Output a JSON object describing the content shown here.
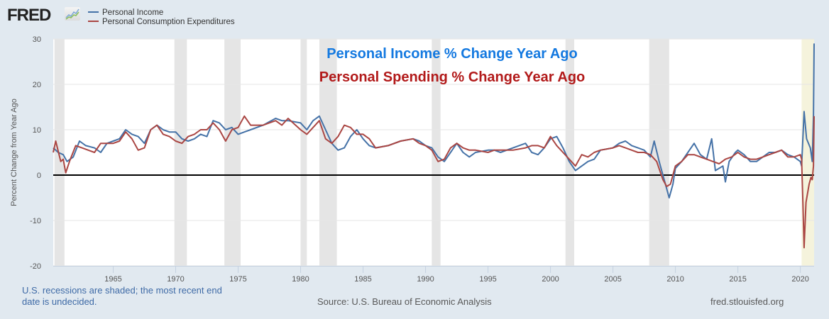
{
  "header": {
    "logo_text": "FRED",
    "logo_icon": "chart-line-icon"
  },
  "legend": [
    {
      "label": "Personal Income",
      "color": "#4572a7"
    },
    {
      "label": "Personal Consumption Expenditures",
      "color": "#aa4643"
    }
  ],
  "annotations": {
    "line1": "Personal Income % Change Year Ago",
    "line2": "Personal Spending % Change Year Ago",
    "line1_color": "#1479e0",
    "line2_color": "#b21a1a"
  },
  "footer": {
    "recession_note": "U.S. recessions are shaded; the most recent end date is undecided.",
    "source": "Source: U.S. Bureau of Economic Analysis",
    "site": "fred.stlouisfed.org"
  },
  "chart_data": {
    "type": "line",
    "title": "",
    "xlabel": "",
    "ylabel": "Percent Change from Year Ago",
    "xlim": [
      1960.2,
      2021.1
    ],
    "ylim": [
      -20,
      30
    ],
    "yticks": [
      -20,
      -10,
      0,
      10,
      20,
      30
    ],
    "xticks": [
      1965,
      1970,
      1975,
      1980,
      1985,
      1990,
      1995,
      2000,
      2005,
      2010,
      2015,
      2020
    ],
    "grid": true,
    "legend_position": "top-left",
    "recessions": [
      {
        "start": 1960.3,
        "end": 1961.1,
        "color": "#e5e5e5"
      },
      {
        "start": 1969.9,
        "end": 1970.9,
        "color": "#e5e5e5"
      },
      {
        "start": 1973.9,
        "end": 1975.2,
        "color": "#e5e5e5"
      },
      {
        "start": 1980.0,
        "end": 1980.5,
        "color": "#e5e5e5"
      },
      {
        "start": 1981.5,
        "end": 1982.9,
        "color": "#e5e5e5"
      },
      {
        "start": 1990.5,
        "end": 1991.2,
        "color": "#e5e5e5"
      },
      {
        "start": 2001.2,
        "end": 2001.9,
        "color": "#e5e5e5"
      },
      {
        "start": 2007.9,
        "end": 2009.5,
        "color": "#e5e5e5"
      },
      {
        "start": 2020.1,
        "end": 2021.1,
        "color": "#f5f3dc"
      }
    ],
    "series": [
      {
        "name": "Personal Income",
        "color": "#4572a7",
        "points": [
          [
            1960.2,
            6
          ],
          [
            1960.6,
            5
          ],
          [
            1961,
            4.5
          ],
          [
            1961.3,
            3
          ],
          [
            1961.8,
            4
          ],
          [
            1962.3,
            7.5
          ],
          [
            1962.8,
            6.5
          ],
          [
            1963.5,
            6
          ],
          [
            1964,
            5
          ],
          [
            1964.5,
            7
          ],
          [
            1965,
            7.5
          ],
          [
            1965.5,
            8
          ],
          [
            1966,
            10
          ],
          [
            1966.5,
            9
          ],
          [
            1967,
            8.5
          ],
          [
            1967.5,
            7
          ],
          [
            1968,
            10
          ],
          [
            1968.5,
            11
          ],
          [
            1969,
            10
          ],
          [
            1969.5,
            9.5
          ],
          [
            1970,
            9.5
          ],
          [
            1970.5,
            8
          ],
          [
            1971,
            7.5
          ],
          [
            1971.5,
            8
          ],
          [
            1972,
            9
          ],
          [
            1972.5,
            8.5
          ],
          [
            1973,
            12
          ],
          [
            1973.5,
            11.5
          ],
          [
            1974,
            10
          ],
          [
            1974.5,
            10.5
          ],
          [
            1975,
            9
          ],
          [
            1975.5,
            9.5
          ],
          [
            1976,
            10
          ],
          [
            1977,
            11
          ],
          [
            1978,
            12.5
          ],
          [
            1978.5,
            12
          ],
          [
            1979,
            12
          ],
          [
            1980,
            11.5
          ],
          [
            1980.5,
            10
          ],
          [
            1981,
            12
          ],
          [
            1981.5,
            13
          ],
          [
            1982,
            10
          ],
          [
            1982.5,
            7
          ],
          [
            1983,
            5.5
          ],
          [
            1983.5,
            6
          ],
          [
            1984,
            8.5
          ],
          [
            1984.5,
            10
          ],
          [
            1985,
            8
          ],
          [
            1985.5,
            6.5
          ],
          [
            1986,
            6
          ],
          [
            1987,
            6.5
          ],
          [
            1988,
            7.5
          ],
          [
            1989,
            8
          ],
          [
            1989.5,
            7.5
          ],
          [
            1990,
            6.5
          ],
          [
            1990.5,
            6
          ],
          [
            1991,
            4
          ],
          [
            1991.5,
            3
          ],
          [
            1992,
            5
          ],
          [
            1992.5,
            7
          ],
          [
            1993,
            5
          ],
          [
            1993.5,
            4
          ],
          [
            1994,
            5
          ],
          [
            1995,
            5.5
          ],
          [
            1995.5,
            5.5
          ],
          [
            1996,
            5
          ],
          [
            1997,
            6
          ],
          [
            1998,
            7
          ],
          [
            1998.5,
            5
          ],
          [
            1999,
            4.5
          ],
          [
            1999.5,
            6
          ],
          [
            2000,
            8
          ],
          [
            2000.5,
            8.5
          ],
          [
            2001,
            6
          ],
          [
            2001.5,
            3
          ],
          [
            2002,
            1
          ],
          [
            2002.5,
            2
          ],
          [
            2003,
            3
          ],
          [
            2003.5,
            3.5
          ],
          [
            2004,
            5.5
          ],
          [
            2005,
            6
          ],
          [
            2005.5,
            7
          ],
          [
            2006,
            7.5
          ],
          [
            2006.5,
            6.5
          ],
          [
            2007,
            6
          ],
          [
            2007.5,
            5.5
          ],
          [
            2008,
            4
          ],
          [
            2008.3,
            7.5
          ],
          [
            2008.7,
            3
          ],
          [
            2009,
            0
          ],
          [
            2009.3,
            -3
          ],
          [
            2009.5,
            -5
          ],
          [
            2009.8,
            -2
          ],
          [
            2010,
            1.5
          ],
          [
            2010.5,
            3
          ],
          [
            2011,
            5
          ],
          [
            2011.5,
            7
          ],
          [
            2012,
            4.5
          ],
          [
            2012.5,
            3.5
          ],
          [
            2012.9,
            8
          ],
          [
            2013.2,
            1
          ],
          [
            2013.8,
            2
          ],
          [
            2014,
            -1.5
          ],
          [
            2014.3,
            3
          ],
          [
            2014.8,
            5
          ],
          [
            2015,
            5.5
          ],
          [
            2015.5,
            4.5
          ],
          [
            2016,
            3
          ],
          [
            2016.5,
            3
          ],
          [
            2017,
            4
          ],
          [
            2017.5,
            5
          ],
          [
            2018,
            5
          ],
          [
            2018.5,
            5.5
          ],
          [
            2019,
            4.5
          ],
          [
            2019.5,
            4
          ],
          [
            2020,
            3
          ],
          [
            2020.1,
            2
          ],
          [
            2020.3,
            14
          ],
          [
            2020.5,
            8
          ],
          [
            2020.8,
            6
          ],
          [
            2020.95,
            3
          ],
          [
            2021.05,
            13
          ],
          [
            2021.1,
            29
          ]
        ]
      },
      {
        "name": "Personal Consumption Expenditures",
        "color": "#aa4643",
        "points": [
          [
            1960.2,
            5
          ],
          [
            1960.4,
            7.5
          ],
          [
            1960.8,
            3
          ],
          [
            1961,
            3.5
          ],
          [
            1961.2,
            0.5
          ],
          [
            1961.5,
            3
          ],
          [
            1962,
            6.5
          ],
          [
            1962.5,
            6
          ],
          [
            1963,
            5.5
          ],
          [
            1963.5,
            5
          ],
          [
            1964,
            7
          ],
          [
            1964.5,
            7
          ],
          [
            1965,
            7
          ],
          [
            1965.5,
            7.5
          ],
          [
            1966,
            9.5
          ],
          [
            1966.5,
            8
          ],
          [
            1967,
            5.5
          ],
          [
            1967.5,
            6
          ],
          [
            1968,
            10
          ],
          [
            1968.5,
            11
          ],
          [
            1969,
            9
          ],
          [
            1969.5,
            8.5
          ],
          [
            1970,
            7.5
          ],
          [
            1970.5,
            7
          ],
          [
            1971,
            8.5
          ],
          [
            1971.5,
            9
          ],
          [
            1972,
            10
          ],
          [
            1972.5,
            10
          ],
          [
            1973,
            11.5
          ],
          [
            1973.5,
            10
          ],
          [
            1974,
            7.5
          ],
          [
            1974.5,
            10
          ],
          [
            1975,
            10.5
          ],
          [
            1975.5,
            13
          ],
          [
            1976,
            11
          ],
          [
            1977,
            11
          ],
          [
            1978,
            12
          ],
          [
            1978.5,
            11
          ],
          [
            1979,
            12.5
          ],
          [
            1980,
            10
          ],
          [
            1980.5,
            9
          ],
          [
            1981,
            10.5
          ],
          [
            1981.5,
            12
          ],
          [
            1982,
            8
          ],
          [
            1982.5,
            7
          ],
          [
            1983,
            8.5
          ],
          [
            1983.5,
            11
          ],
          [
            1984,
            10.5
          ],
          [
            1984.5,
            9
          ],
          [
            1985,
            9
          ],
          [
            1985.5,
            8
          ],
          [
            1986,
            6
          ],
          [
            1987,
            6.5
          ],
          [
            1988,
            7.5
          ],
          [
            1989,
            8
          ],
          [
            1989.5,
            7
          ],
          [
            1990,
            6.5
          ],
          [
            1990.5,
            5.5
          ],
          [
            1991,
            3
          ],
          [
            1991.5,
            3.5
          ],
          [
            1992,
            6
          ],
          [
            1992.5,
            7
          ],
          [
            1993,
            6
          ],
          [
            1993.5,
            5.5
          ],
          [
            1994,
            5.5
          ],
          [
            1995,
            5
          ],
          [
            1995.5,
            5.5
          ],
          [
            1996,
            5.5
          ],
          [
            1997,
            5.5
          ],
          [
            1998,
            6
          ],
          [
            1998.5,
            6.5
          ],
          [
            1999,
            6.5
          ],
          [
            1999.5,
            6
          ],
          [
            2000,
            8.5
          ],
          [
            2000.5,
            6.5
          ],
          [
            2001,
            5
          ],
          [
            2001.5,
            3.5
          ],
          [
            2002,
            2
          ],
          [
            2002.5,
            4.5
          ],
          [
            2003,
            4
          ],
          [
            2003.5,
            5
          ],
          [
            2004,
            5.5
          ],
          [
            2005,
            6
          ],
          [
            2005.5,
            6.5
          ],
          [
            2006,
            6
          ],
          [
            2006.5,
            5.5
          ],
          [
            2007,
            5
          ],
          [
            2007.5,
            5
          ],
          [
            2008,
            4.5
          ],
          [
            2008.5,
            3
          ],
          [
            2009,
            -1
          ],
          [
            2009.3,
            -2.5
          ],
          [
            2009.6,
            -2
          ],
          [
            2010,
            2
          ],
          [
            2010.5,
            3
          ],
          [
            2011,
            4.5
          ],
          [
            2011.5,
            4.5
          ],
          [
            2012,
            4
          ],
          [
            2012.5,
            3.5
          ],
          [
            2013,
            3
          ],
          [
            2013.5,
            2.5
          ],
          [
            2014,
            3.5
          ],
          [
            2014.5,
            4
          ],
          [
            2015,
            5
          ],
          [
            2015.5,
            4
          ],
          [
            2016,
            3.5
          ],
          [
            2016.5,
            3.5
          ],
          [
            2017,
            4
          ],
          [
            2017.5,
            4.5
          ],
          [
            2018,
            5
          ],
          [
            2018.5,
            5.5
          ],
          [
            2019,
            4
          ],
          [
            2019.5,
            4
          ],
          [
            2020,
            4.5
          ],
          [
            2020.1,
            3.5
          ],
          [
            2020.2,
            -6
          ],
          [
            2020.3,
            -16
          ],
          [
            2020.45,
            -6
          ],
          [
            2020.7,
            -2
          ],
          [
            2020.85,
            -0.5
          ],
          [
            2020.95,
            -1
          ],
          [
            2021.05,
            2
          ],
          [
            2021.1,
            13
          ]
        ]
      }
    ]
  }
}
